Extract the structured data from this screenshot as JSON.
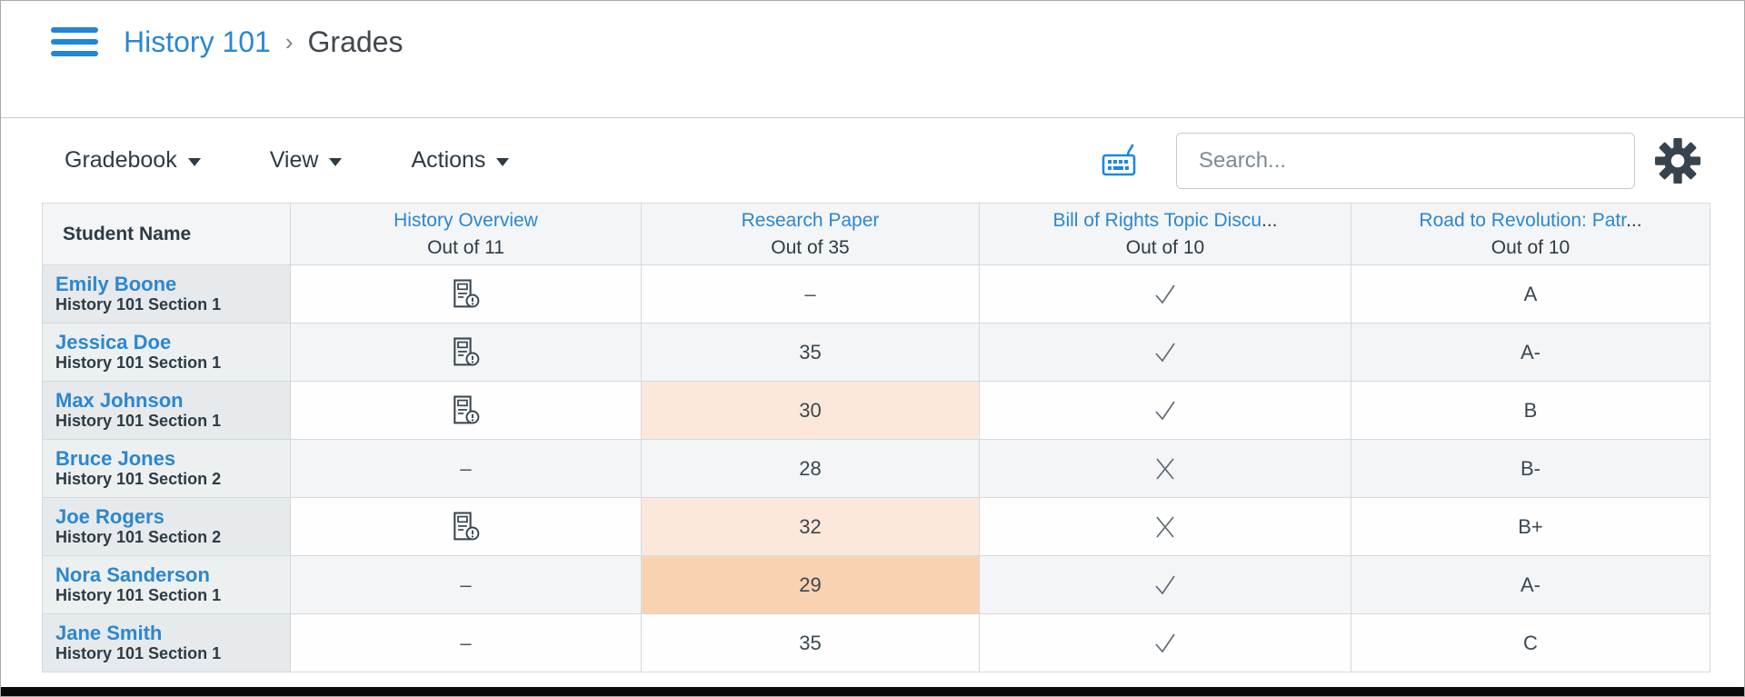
{
  "breadcrumb": {
    "course": "History 101",
    "separator": "›",
    "current": "Grades"
  },
  "toolbar": {
    "menus": [
      {
        "label": "Gradebook"
      },
      {
        "label": "View"
      },
      {
        "label": "Actions"
      }
    ],
    "search": {
      "placeholder": "Search..."
    }
  },
  "table": {
    "student_header": "Student Name",
    "columns": [
      {
        "title": "History Overview",
        "ellipsis": "",
        "subtitle": "Out of 11"
      },
      {
        "title": "Research Paper",
        "ellipsis": "",
        "subtitle": "Out of 35"
      },
      {
        "title": "Bill of Rights Topic Discu",
        "ellipsis": "...",
        "subtitle": "Out of 10"
      },
      {
        "title": "Road to Revolution: Patr",
        "ellipsis": "...",
        "subtitle": "Out of 10"
      }
    ],
    "rows": [
      {
        "name": "Emily Boone",
        "section": "History 101 Section 1",
        "cells": [
          {
            "type": "icon"
          },
          {
            "type": "dash",
            "value": "–"
          },
          {
            "type": "check"
          },
          {
            "type": "grade",
            "value": "A"
          }
        ]
      },
      {
        "name": "Jessica Doe",
        "section": "History 101 Section 1",
        "cells": [
          {
            "type": "icon"
          },
          {
            "type": "score",
            "value": "35"
          },
          {
            "type": "check"
          },
          {
            "type": "grade",
            "value": "A-"
          }
        ]
      },
      {
        "name": "Max Johnson",
        "section": "History 101 Section 1",
        "cells": [
          {
            "type": "icon"
          },
          {
            "type": "score",
            "value": "30",
            "highlight": "light"
          },
          {
            "type": "check"
          },
          {
            "type": "grade",
            "value": "B"
          }
        ]
      },
      {
        "name": "Bruce Jones",
        "section": "History 101 Section 2",
        "cells": [
          {
            "type": "dash",
            "value": "–"
          },
          {
            "type": "score",
            "value": "28"
          },
          {
            "type": "cross"
          },
          {
            "type": "grade",
            "value": "B-"
          }
        ]
      },
      {
        "name": "Joe Rogers",
        "section": "History 101 Section 2",
        "cells": [
          {
            "type": "icon"
          },
          {
            "type": "score",
            "value": "32",
            "highlight": "light"
          },
          {
            "type": "cross"
          },
          {
            "type": "grade",
            "value": "B+"
          }
        ]
      },
      {
        "name": "Nora Sanderson",
        "section": "History 101 Section 1",
        "cells": [
          {
            "type": "dash",
            "value": "–"
          },
          {
            "type": "score",
            "value": "29",
            "highlight": "dark"
          },
          {
            "type": "check"
          },
          {
            "type": "grade",
            "value": "A-"
          }
        ]
      },
      {
        "name": "Jane Smith",
        "section": "History 101 Section 1",
        "cells": [
          {
            "type": "dash",
            "value": "–"
          },
          {
            "type": "score",
            "value": "35"
          },
          {
            "type": "check"
          },
          {
            "type": "grade",
            "value": "C"
          }
        ]
      }
    ]
  },
  "colors": {
    "link_blue": "#2B87D1",
    "ink": "#2D3B45",
    "hamburger_blue": "#2185D8",
    "keyboard_blue": "#1E88E0",
    "gear_dark": "#37444E",
    "late_cell_light": "#FCE8DB",
    "late_cell_dark": "#F9D3B1",
    "icon_stroke": "#3A4750",
    "check_stroke": "#5D6B77"
  }
}
